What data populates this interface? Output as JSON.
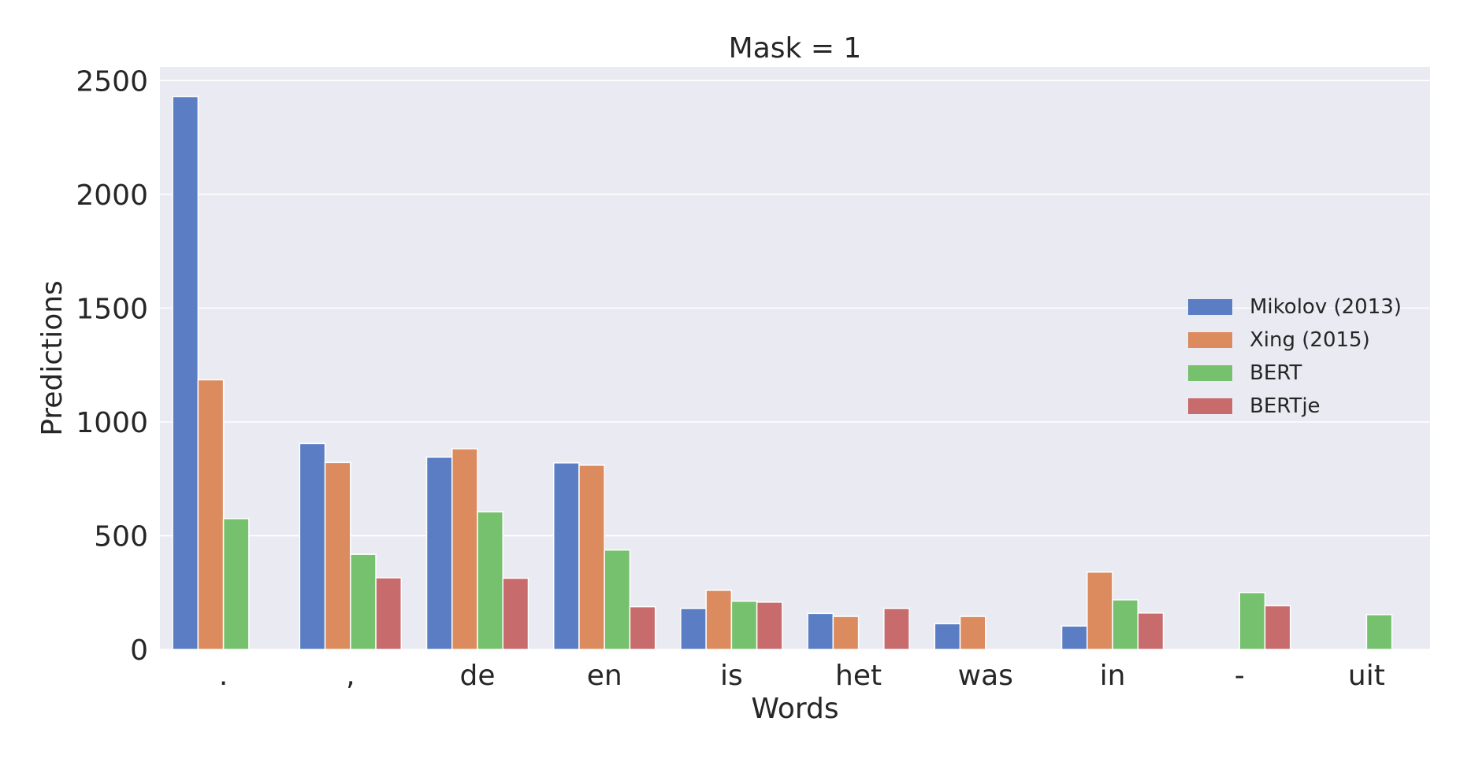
{
  "chart_data": {
    "type": "bar",
    "title": "Mask = 1",
    "xlabel": "Words",
    "ylabel": "Predictions",
    "categories": [
      ".",
      ",",
      "de",
      "en",
      "is",
      "het",
      "was",
      "in",
      "-",
      "uit"
    ],
    "series": [
      {
        "name": "Mikolov (2013)",
        "color": "#5a7dc3",
        "values": [
          2430,
          905,
          845,
          820,
          180,
          158,
          113,
          103,
          null,
          null
        ]
      },
      {
        "name": "Xing (2015)",
        "color": "#dc8b5e",
        "values": [
          1185,
          822,
          882,
          810,
          260,
          145,
          145,
          340,
          null,
          null
        ]
      },
      {
        "name": "BERT",
        "color": "#76c16e",
        "values": [
          575,
          418,
          605,
          437,
          212,
          null,
          null,
          218,
          250,
          153
        ]
      },
      {
        "name": "BERTje",
        "color": "#c76b6d",
        "values": [
          null,
          315,
          313,
          188,
          208,
          180,
          null,
          160,
          192,
          null
        ]
      }
    ],
    "ylim": [
      0,
      2560
    ],
    "yticks": [
      0,
      500,
      1000,
      1500,
      2000,
      2500
    ],
    "grid": true,
    "legend_position": "center-right",
    "background": "#eaeaf2"
  }
}
